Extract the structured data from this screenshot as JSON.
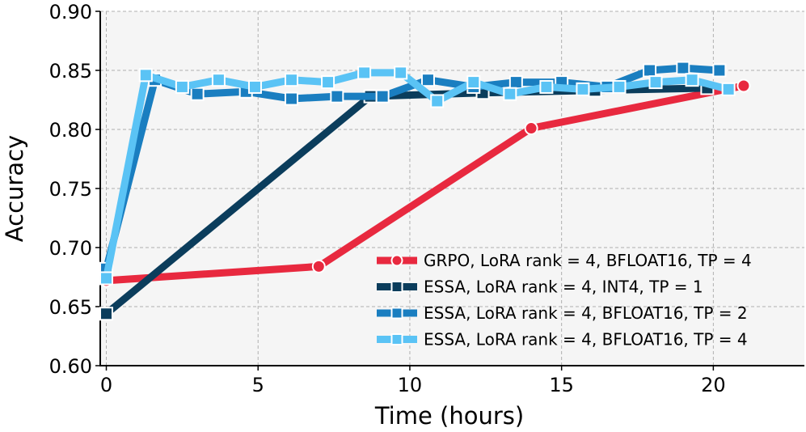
{
  "chart_data": {
    "type": "line",
    "title": "",
    "xlabel": "Time (hours)",
    "ylabel": "Accuracy",
    "xlim": [
      -0.2,
      23
    ],
    "ylim": [
      0.6,
      0.9
    ],
    "xticks": [
      0,
      5,
      10,
      15,
      20
    ],
    "xtick_labels": [
      "0",
      "5",
      "10",
      "15",
      "20"
    ],
    "yticks": [
      0.6,
      0.65,
      0.7,
      0.75,
      0.8,
      0.85,
      0.9
    ],
    "ytick_labels": [
      "0.60",
      "0.65",
      "0.70",
      "0.75",
      "0.80",
      "0.85",
      "0.90"
    ],
    "grid": true,
    "legend_position": "lower-right",
    "series": [
      {
        "name": "GRPO, LoRA rank = 4, BFLOAT16, TP = 4",
        "color": "#e8293f",
        "marker": "circle",
        "x": [
          0,
          7.0,
          14.0,
          21.0
        ],
        "y": [
          0.672,
          0.684,
          0.801,
          0.837
        ]
      },
      {
        "name": "ESSA, LoRA rank = 4, INT4, TP = 1",
        "color": "#0b3d5c",
        "marker": "square",
        "x": [
          0,
          8.7,
          12.4,
          16.1,
          19.8
        ],
        "y": [
          0.644,
          0.828,
          0.831,
          0.833,
          0.835
        ]
      },
      {
        "name": "ESSA, LoRA rank = 4, BFLOAT16, TP = 2",
        "color": "#1a7ec0",
        "marker": "square",
        "x": [
          0,
          1.6,
          3.0,
          4.6,
          6.1,
          7.6,
          9.1,
          10.6,
          12.1,
          13.5,
          15.0,
          16.5,
          17.9,
          19.0,
          20.2
        ],
        "y": [
          0.682,
          0.842,
          0.83,
          0.832,
          0.826,
          0.828,
          0.828,
          0.842,
          0.836,
          0.84,
          0.84,
          0.836,
          0.85,
          0.852,
          0.85
        ]
      },
      {
        "name": "ESSA, LoRA rank = 4, BFLOAT16, TP = 4",
        "color": "#5ac3f5",
        "marker": "square",
        "x": [
          0,
          1.3,
          2.5,
          3.7,
          4.9,
          6.1,
          7.3,
          8.5,
          9.7,
          10.9,
          12.1,
          13.3,
          14.5,
          15.7,
          16.9,
          18.1,
          19.3,
          20.5
        ],
        "y": [
          0.674,
          0.846,
          0.836,
          0.842,
          0.836,
          0.842,
          0.84,
          0.848,
          0.848,
          0.824,
          0.84,
          0.83,
          0.836,
          0.834,
          0.836,
          0.84,
          0.842,
          0.834
        ]
      }
    ]
  }
}
